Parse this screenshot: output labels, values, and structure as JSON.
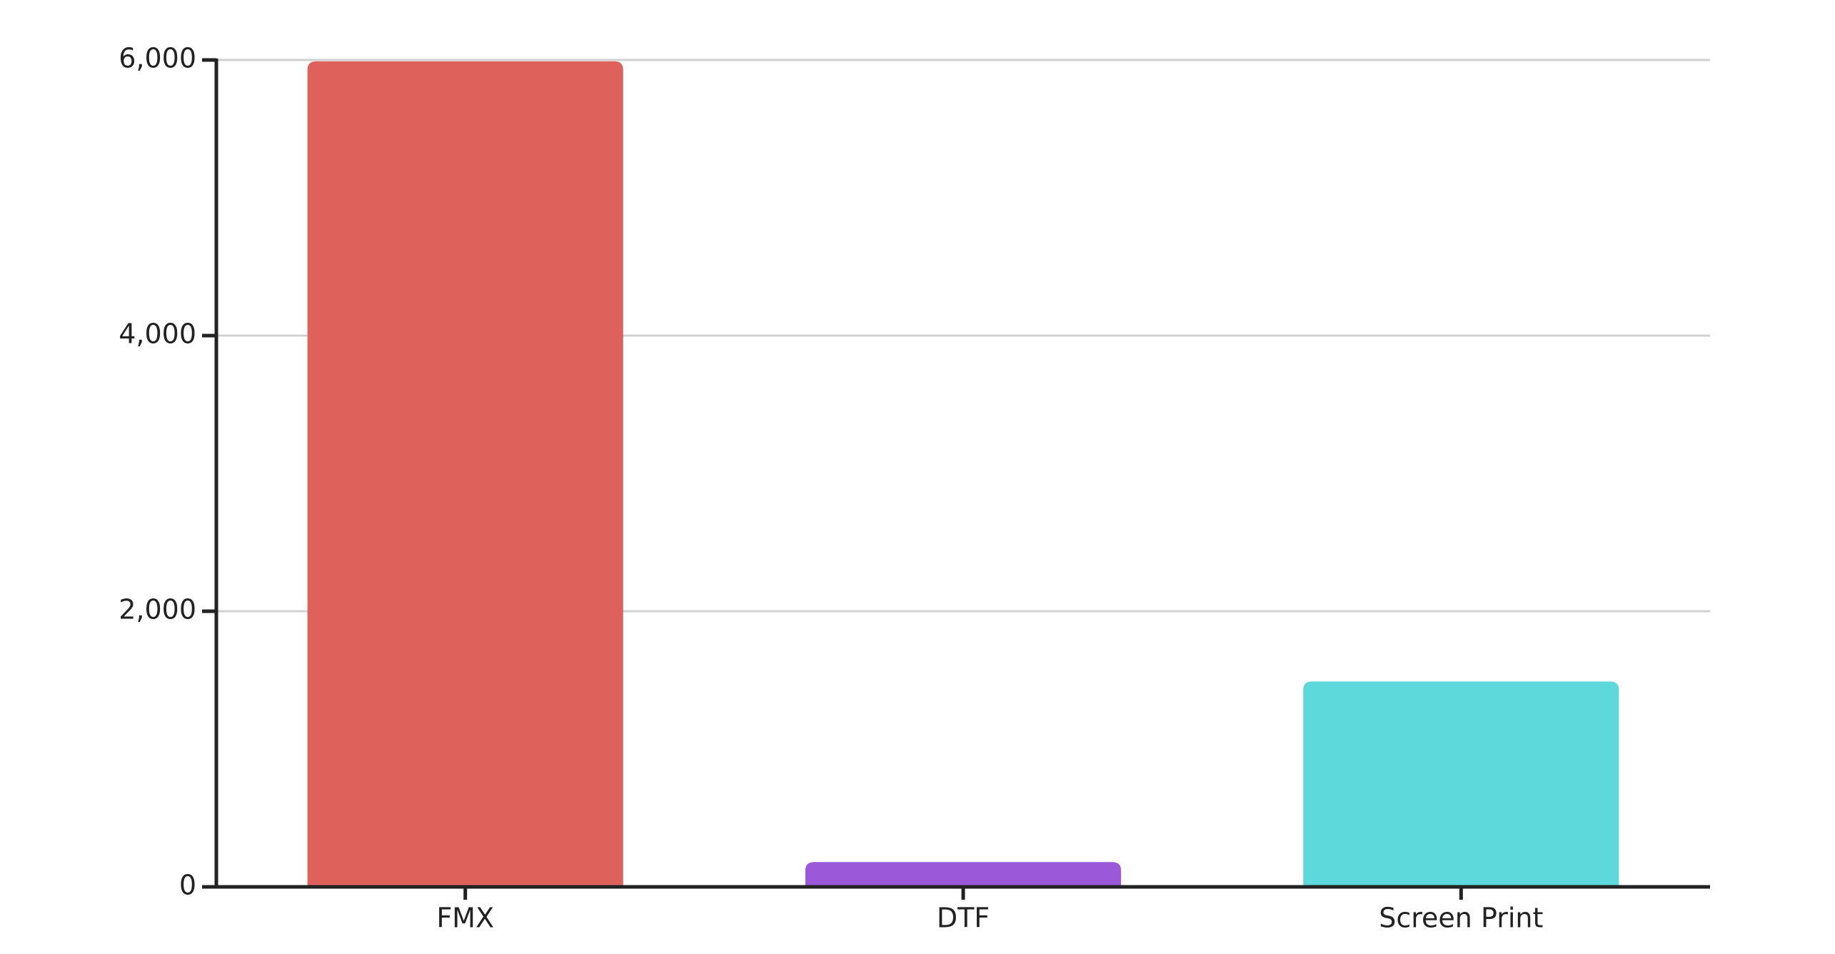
{
  "chart_data": {
    "type": "bar",
    "categories": [
      "FMX",
      "DTF",
      "Screen Print"
    ],
    "values": [
      5990,
      180,
      1490
    ],
    "colors": [
      "#de615b",
      "#9b59d9",
      "#5dd9dc"
    ],
    "ylim": [
      0,
      6000
    ],
    "yticks": [
      0,
      {
        "value": 2000,
        "label": "2,000"
      },
      {
        "value": 4000,
        "label": "4,000"
      },
      {
        "value": 6000,
        "label": "6,000"
      }
    ],
    "grid": true
  }
}
